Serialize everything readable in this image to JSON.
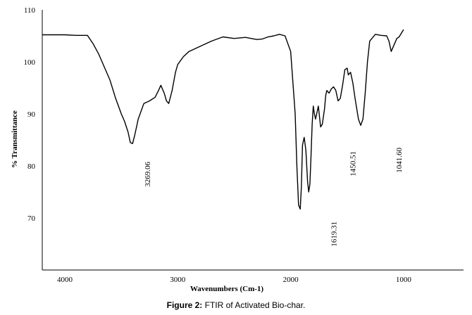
{
  "caption": {
    "label": "Figure 2:",
    "text": "FTIR of Activated Bio-char."
  },
  "chart_data": {
    "type": "line",
    "title": "",
    "xlabel": "Wavenumbers (Cm-1)",
    "ylabel": "% Transmittance",
    "xlim": [
      4200,
      500
    ],
    "ylim": [
      60,
      110
    ],
    "x_ticks": [
      4000,
      3000,
      2000,
      1000
    ],
    "y_ticks": [
      70,
      80,
      90,
      100,
      110
    ],
    "grid": false,
    "line_color": "#000000",
    "series": [
      {
        "x": [
          4200,
          4000,
          3900,
          3800,
          3750,
          3700,
          3650,
          3600,
          3550,
          3500,
          3470,
          3440,
          3420,
          3400,
          3380,
          3350,
          3300,
          3250,
          3200,
          3170,
          3150,
          3120,
          3100,
          3080,
          3050,
          3020,
          3000,
          2950,
          2900,
          2800,
          2700,
          2600,
          2500,
          2400,
          2300,
          2250,
          2200,
          2150,
          2100,
          2050,
          2000,
          1960,
          1945,
          1930,
          1915,
          1905,
          1895,
          1880,
          1865,
          1850,
          1840,
          1830,
          1820,
          1810,
          1800,
          1790,
          1780,
          1765,
          1755,
          1745,
          1735,
          1720,
          1700,
          1690,
          1680,
          1660,
          1640,
          1620,
          1600,
          1580,
          1560,
          1540,
          1520,
          1500,
          1490,
          1470,
          1450,
          1430,
          1415,
          1400,
          1380,
          1360,
          1340,
          1320,
          1300,
          1250,
          1200,
          1150,
          1130,
          1110,
          1090,
          1060,
          1040,
          1020,
          1000
        ],
        "y": [
          105.2,
          105.2,
          105.1,
          105.1,
          103.5,
          101.5,
          99.0,
          96.5,
          93.0,
          90.0,
          88.5,
          86.5,
          84.5,
          84.3,
          86.0,
          89.0,
          92.0,
          92.5,
          93.2,
          94.5,
          95.5,
          94.0,
          92.5,
          92.0,
          94.5,
          98.0,
          99.5,
          101.0,
          102.0,
          103.0,
          104.0,
          104.8,
          104.5,
          104.7,
          104.3,
          104.4,
          104.8,
          105.0,
          105.3,
          105.0,
          102.0,
          90.0,
          80.0,
          72.5,
          71.7,
          76.0,
          84.0,
          85.5,
          83.0,
          77.0,
          75.0,
          76.5,
          82.0,
          88.0,
          91.5,
          90.0,
          89.0,
          90.5,
          91.5,
          89.5,
          87.5,
          88.0,
          91.0,
          93.5,
          94.5,
          94.0,
          94.8,
          95.2,
          94.5,
          92.5,
          93.0,
          95.5,
          98.5,
          98.8,
          97.5,
          98.0,
          96.0,
          93.0,
          91.0,
          89.0,
          87.8,
          89.0,
          94.0,
          100.0,
          104.0,
          105.3,
          105.1,
          105.0,
          104.0,
          102.0,
          103.0,
          104.5,
          104.8,
          105.5,
          106.2
        ]
      }
    ],
    "annotations": [
      {
        "text": "3269.06",
        "x": 3269.06
      },
      {
        "text": "1619.31",
        "x": 1619.31
      },
      {
        "text": "1450.51",
        "x": 1450.51
      },
      {
        "text": "1041.60",
        "x": 1041.6
      }
    ]
  }
}
